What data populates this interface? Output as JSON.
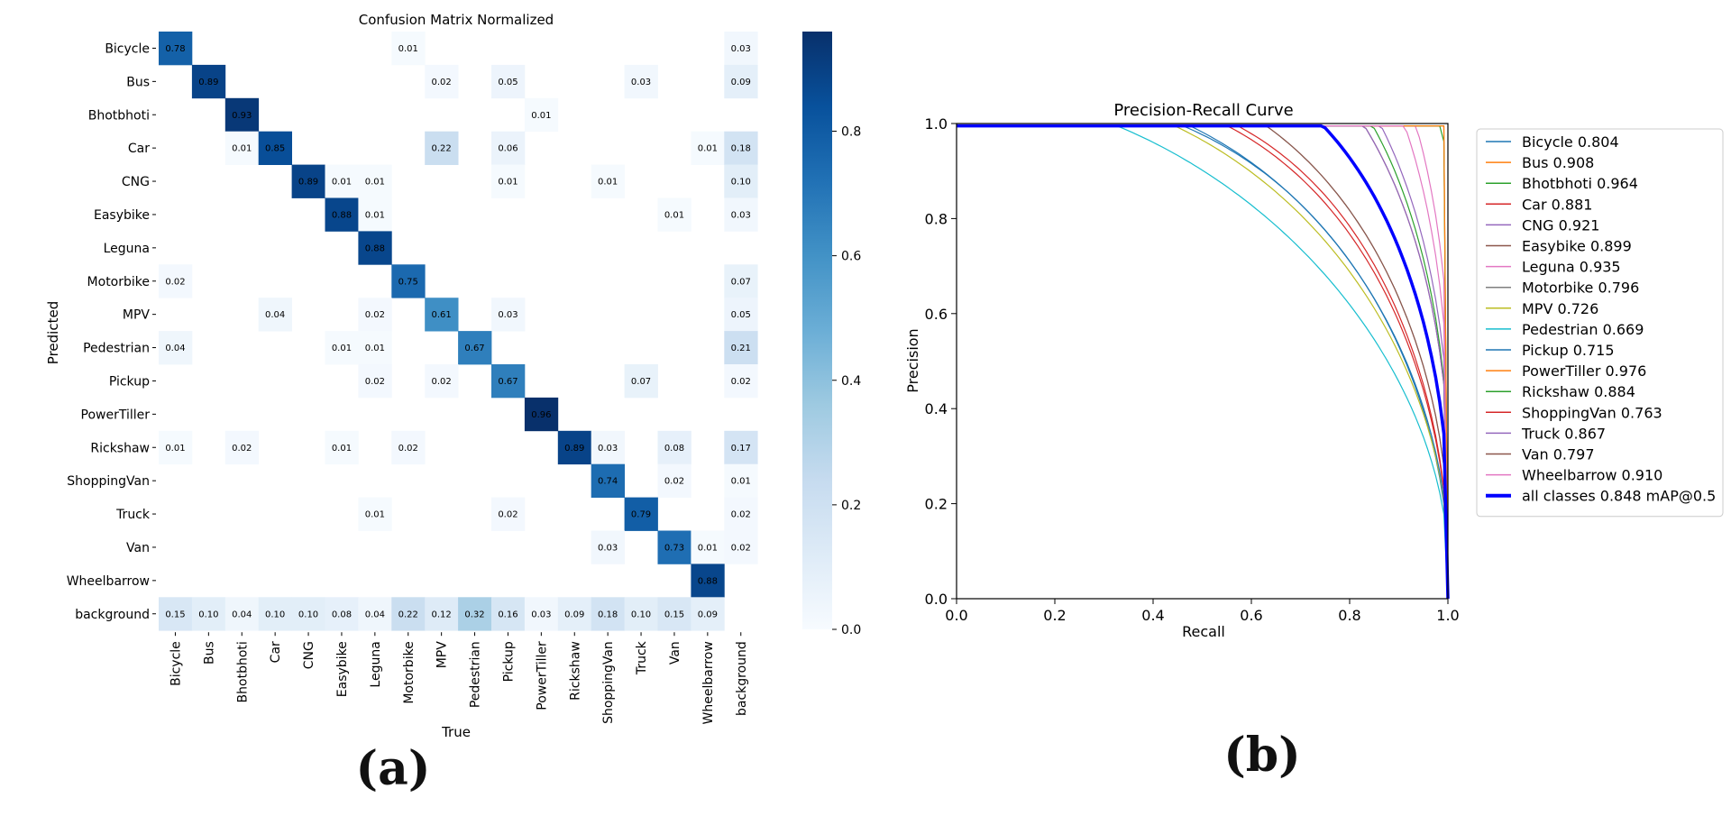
{
  "panels": {
    "a": {
      "label": "(a)"
    },
    "b": {
      "label": "(b)"
    }
  },
  "chart_data": [
    {
      "type": "heatmap",
      "title": "Confusion Matrix Normalized",
      "xlabel": "True",
      "ylabel": "Predicted",
      "colormap": "Blues",
      "colorbar": {
        "min": 0.0,
        "max": 0.96,
        "ticks": [
          "0.0",
          "0.2",
          "0.4",
          "0.6",
          "0.8"
        ]
      },
      "rows": [
        "Bicycle",
        "Bus",
        "Bhotbhoti",
        "Car",
        "CNG",
        "Easybike",
        "Leguna",
        "Motorbike",
        "MPV",
        "Pedestrian",
        "Pickup",
        "PowerTiller",
        "Rickshaw",
        "ShoppingVan",
        "Truck",
        "Van",
        "Wheelbarrow",
        "background"
      ],
      "cols": [
        "Bicycle",
        "Bus",
        "Bhotbhoti",
        "Car",
        "CNG",
        "Easybike",
        "Leguna",
        "Motorbike",
        "MPV",
        "Pedestrian",
        "Pickup",
        "PowerTiller",
        "Rickshaw",
        "ShoppingVan",
        "Truck",
        "Van",
        "Wheelbarrow",
        "background"
      ],
      "cells": [
        [
          0,
          0,
          0.78
        ],
        [
          0,
          7,
          0.01
        ],
        [
          0,
          17,
          0.03
        ],
        [
          1,
          1,
          0.89
        ],
        [
          1,
          8,
          0.02
        ],
        [
          1,
          10,
          0.05
        ],
        [
          1,
          14,
          0.03
        ],
        [
          1,
          17,
          0.09
        ],
        [
          2,
          2,
          0.93
        ],
        [
          2,
          11,
          0.01
        ],
        [
          3,
          2,
          0.01
        ],
        [
          3,
          3,
          0.85
        ],
        [
          3,
          8,
          0.22
        ],
        [
          3,
          10,
          0.06
        ],
        [
          3,
          16,
          0.01
        ],
        [
          3,
          17,
          0.18
        ],
        [
          4,
          4,
          0.89
        ],
        [
          4,
          5,
          0.01
        ],
        [
          4,
          6,
          0.01
        ],
        [
          4,
          10,
          0.01
        ],
        [
          4,
          13,
          0.01
        ],
        [
          4,
          17,
          0.1
        ],
        [
          5,
          5,
          0.88
        ],
        [
          5,
          6,
          0.01
        ],
        [
          5,
          15,
          0.01
        ],
        [
          5,
          17,
          0.03
        ],
        [
          6,
          6,
          0.88
        ],
        [
          7,
          0,
          0.02
        ],
        [
          7,
          7,
          0.75
        ],
        [
          7,
          17,
          0.07
        ],
        [
          8,
          3,
          0.04
        ],
        [
          8,
          6,
          0.02
        ],
        [
          8,
          8,
          0.61
        ],
        [
          8,
          10,
          0.03
        ],
        [
          8,
          17,
          0.05
        ],
        [
          9,
          0,
          0.04
        ],
        [
          9,
          5,
          0.01
        ],
        [
          9,
          6,
          0.01
        ],
        [
          9,
          9,
          0.67
        ],
        [
          9,
          17,
          0.21
        ],
        [
          10,
          6,
          0.02
        ],
        [
          10,
          8,
          0.02
        ],
        [
          10,
          10,
          0.67
        ],
        [
          10,
          14,
          0.07
        ],
        [
          10,
          17,
          0.02
        ],
        [
          11,
          11,
          0.96
        ],
        [
          12,
          0,
          0.01
        ],
        [
          12,
          2,
          0.02
        ],
        [
          12,
          5,
          0.01
        ],
        [
          12,
          7,
          0.02
        ],
        [
          12,
          12,
          0.89
        ],
        [
          12,
          13,
          0.03
        ],
        [
          12,
          15,
          0.08
        ],
        [
          12,
          17,
          0.17
        ],
        [
          13,
          13,
          0.74
        ],
        [
          13,
          15,
          0.02
        ],
        [
          13,
          17,
          0.01
        ],
        [
          14,
          6,
          0.01
        ],
        [
          14,
          10,
          0.02
        ],
        [
          14,
          14,
          0.79
        ],
        [
          14,
          17,
          0.02
        ],
        [
          15,
          13,
          0.03
        ],
        [
          15,
          15,
          0.73
        ],
        [
          15,
          16,
          0.01
        ],
        [
          15,
          17,
          0.02
        ],
        [
          16,
          16,
          0.88
        ],
        [
          17,
          0,
          0.15
        ],
        [
          17,
          1,
          0.1
        ],
        [
          17,
          2,
          0.04
        ],
        [
          17,
          3,
          0.1
        ],
        [
          17,
          4,
          0.1
        ],
        [
          17,
          5,
          0.08
        ],
        [
          17,
          6,
          0.04
        ],
        [
          17,
          7,
          0.22
        ],
        [
          17,
          8,
          0.12
        ],
        [
          17,
          9,
          0.32
        ],
        [
          17,
          10,
          0.16
        ],
        [
          17,
          11,
          0.03
        ],
        [
          17,
          12,
          0.09
        ],
        [
          17,
          13,
          0.18
        ],
        [
          17,
          14,
          0.1
        ],
        [
          17,
          15,
          0.15
        ],
        [
          17,
          16,
          0.09
        ]
      ]
    },
    {
      "type": "line",
      "title": "Precision-Recall Curve",
      "xlabel": "Recall",
      "ylabel": "Precision",
      "xlim": [
        0,
        1
      ],
      "ylim": [
        0,
        1
      ],
      "xticks": [
        "0.0",
        "0.2",
        "0.4",
        "0.6",
        "0.8",
        "1.0"
      ],
      "yticks": [
        "0.0",
        "0.2",
        "0.4",
        "0.6",
        "0.8",
        "1.0"
      ],
      "legend_position": "outside-right",
      "series": [
        {
          "name": "Bicycle 0.804",
          "color": "#1f77b4",
          "k": 2.6,
          "floor": 0.08
        },
        {
          "name": "Bus 0.908",
          "color": "#ff7f0e",
          "k": 6.5,
          "floor": 0.9
        },
        {
          "name": "Bhotbhoti 0.964",
          "color": "#2ca02c",
          "k": 7.5,
          "floor": 0.75
        },
        {
          "name": "Car 0.881",
          "color": "#d62728",
          "k": 3.2,
          "floor": 0.1
        },
        {
          "name": "CNG 0.921",
          "color": "#9467bd",
          "k": 4.2,
          "floor": 0.35
        },
        {
          "name": "Easybike 0.899",
          "color": "#8c564b",
          "k": 4.0,
          "floor": 0.3
        },
        {
          "name": "Leguna 0.935",
          "color": "#e377c2",
          "k": 5.0,
          "floor": 0.5
        },
        {
          "name": "Motorbike 0.796",
          "color": "#7f7f7f",
          "k": 3.0,
          "floor": 0.15
        },
        {
          "name": "MPV 0.726",
          "color": "#bcbd22",
          "k": 2.2,
          "floor": 0.1
        },
        {
          "name": "Pedestrian 0.669",
          "color": "#17becf",
          "k": 1.8,
          "floor": 0.08
        },
        {
          "name": "Pickup 0.715",
          "color": "#1f77b4",
          "k": 2.4,
          "floor": 0.1
        },
        {
          "name": "PowerTiller 0.976",
          "color": "#ff7f0e",
          "k": 9.0,
          "floor": 0.9
        },
        {
          "name": "Rickshaw 0.884",
          "color": "#2ca02c",
          "k": 4.5,
          "floor": 0.3
        },
        {
          "name": "ShoppingVan 0.763",
          "color": "#d62728",
          "k": 3.0,
          "floor": 0.1
        },
        {
          "name": "Truck 0.867",
          "color": "#9467bd",
          "k": 4.0,
          "floor": 0.3
        },
        {
          "name": "Van 0.797",
          "color": "#8c564b",
          "k": 3.0,
          "floor": 0.15
        },
        {
          "name": "Wheelbarrow 0.910",
          "color": "#e377c2",
          "k": 5.5,
          "floor": 0.4
        },
        {
          "name": "all classes 0.848 mAP@0.5",
          "color": "#0000ff",
          "k": 3.8,
          "floor": 0.2,
          "bold": true
        }
      ]
    }
  ]
}
